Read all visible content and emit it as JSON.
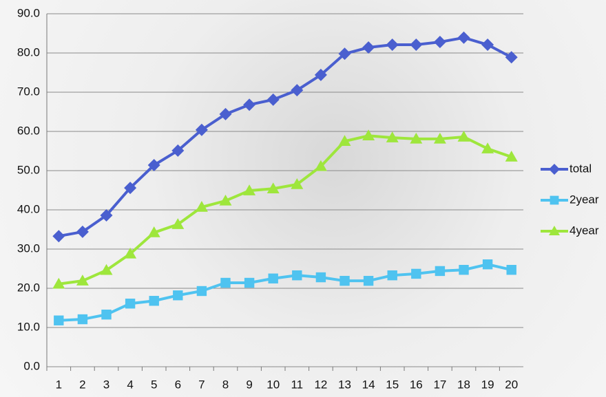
{
  "chart_data": {
    "type": "line",
    "categories": [
      "1",
      "2",
      "3",
      "4",
      "5",
      "6",
      "7",
      "8",
      "9",
      "10",
      "11",
      "12",
      "13",
      "14",
      "15",
      "16",
      "17",
      "18",
      "19",
      "20"
    ],
    "series": [
      {
        "name": "total",
        "color": "#4a5fcf",
        "marker": "diamond",
        "values": [
          33.3,
          34.4,
          38.6,
          45.6,
          51.4,
          55.1,
          60.4,
          64.4,
          66.8,
          68.1,
          70.5,
          74.4,
          79.8,
          81.4,
          82.1,
          82.1,
          82.8,
          83.9,
          82.1,
          78.9
        ]
      },
      {
        "name": "2year",
        "color": "#4fc3f0",
        "marker": "square",
        "values": [
          11.8,
          12.1,
          13.3,
          16.1,
          16.8,
          18.2,
          19.3,
          21.4,
          21.4,
          22.5,
          23.3,
          22.8,
          21.9,
          21.9,
          23.3,
          23.7,
          24.4,
          24.7,
          26.1,
          24.7
        ]
      },
      {
        "name": "4year",
        "color": "#9ee63c",
        "marker": "triangle",
        "values": [
          21.1,
          21.9,
          24.6,
          28.8,
          34.2,
          36.3,
          40.7,
          42.3,
          44.9,
          45.4,
          46.5,
          51.1,
          57.5,
          58.9,
          58.4,
          58.1,
          58.1,
          58.6,
          55.6,
          53.5
        ]
      }
    ],
    "ylim": [
      0,
      90
    ],
    "yticks": [
      {
        "value": 0,
        "label": "0.0"
      },
      {
        "value": 10,
        "label": "10.0"
      },
      {
        "value": 20,
        "label": "20.0"
      },
      {
        "value": 30,
        "label": "30.0"
      },
      {
        "value": 40,
        "label": "40.0"
      },
      {
        "value": 50,
        "label": "50.0"
      },
      {
        "value": 60,
        "label": "60.0"
      },
      {
        "value": 70,
        "label": "70.0"
      },
      {
        "value": 80,
        "label": "80.0"
      },
      {
        "value": 90,
        "label": "90.0"
      }
    ],
    "grid": true,
    "legend": "right"
  }
}
